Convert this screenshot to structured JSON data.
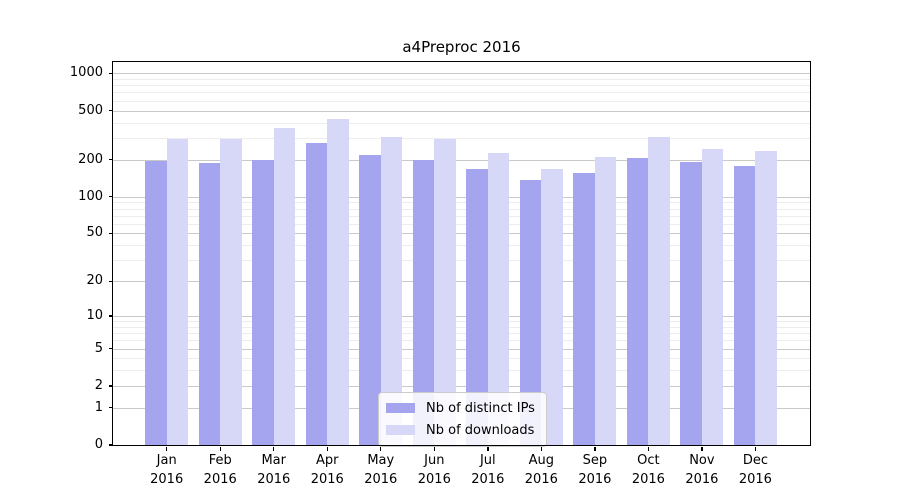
{
  "title": "a4Preproc 2016",
  "chart_data": {
    "type": "bar",
    "title": "a4Preproc 2016",
    "categories": [
      "Jan 2016",
      "Feb 2016",
      "Mar 2016",
      "Apr 2016",
      "May 2016",
      "Jun 2016",
      "Jul 2016",
      "Aug 2016",
      "Sep 2016",
      "Oct 2016",
      "Nov 2016",
      "Dec 2016"
    ],
    "months": [
      "Jan",
      "Feb",
      "Mar",
      "Apr",
      "May",
      "Jun",
      "Jul",
      "Aug",
      "Sep",
      "Oct",
      "Nov",
      "Dec"
    ],
    "year_label": "2016",
    "series": [
      {
        "name": "Nb of distinct IPs",
        "color": "#a5a5ef",
        "values": [
          195,
          188,
          198,
          272,
          218,
          198,
          167,
          138,
          157,
          206,
          191,
          177
        ]
      },
      {
        "name": "Nb of downloads",
        "color": "#d7d7f8",
        "values": [
          293,
          297,
          358,
          424,
          305,
          297,
          228,
          167,
          212,
          306,
          243,
          235
        ]
      }
    ],
    "yscale": "log1p",
    "ylim": [
      0,
      1230
    ],
    "y_major_ticks": [
      1000,
      500,
      200,
      100,
      50,
      20,
      10,
      5,
      2,
      1,
      0
    ],
    "y_minor_ticks": [
      3,
      4,
      6,
      7,
      8,
      9,
      30,
      40,
      60,
      70,
      80,
      90,
      300,
      400,
      600,
      700,
      800,
      900
    ],
    "grid": true,
    "legend_position": "lower center"
  },
  "colors": {
    "bar_ips": "#a5a5ef",
    "bar_downloads": "#d7d7f8",
    "grid_major": "#c9c9c9",
    "grid_minor": "#ededed",
    "axis": "#000000",
    "legend_border": "#cccccc",
    "legend_bg": "rgba(255,255,255,0.85)",
    "text": "#000000"
  }
}
